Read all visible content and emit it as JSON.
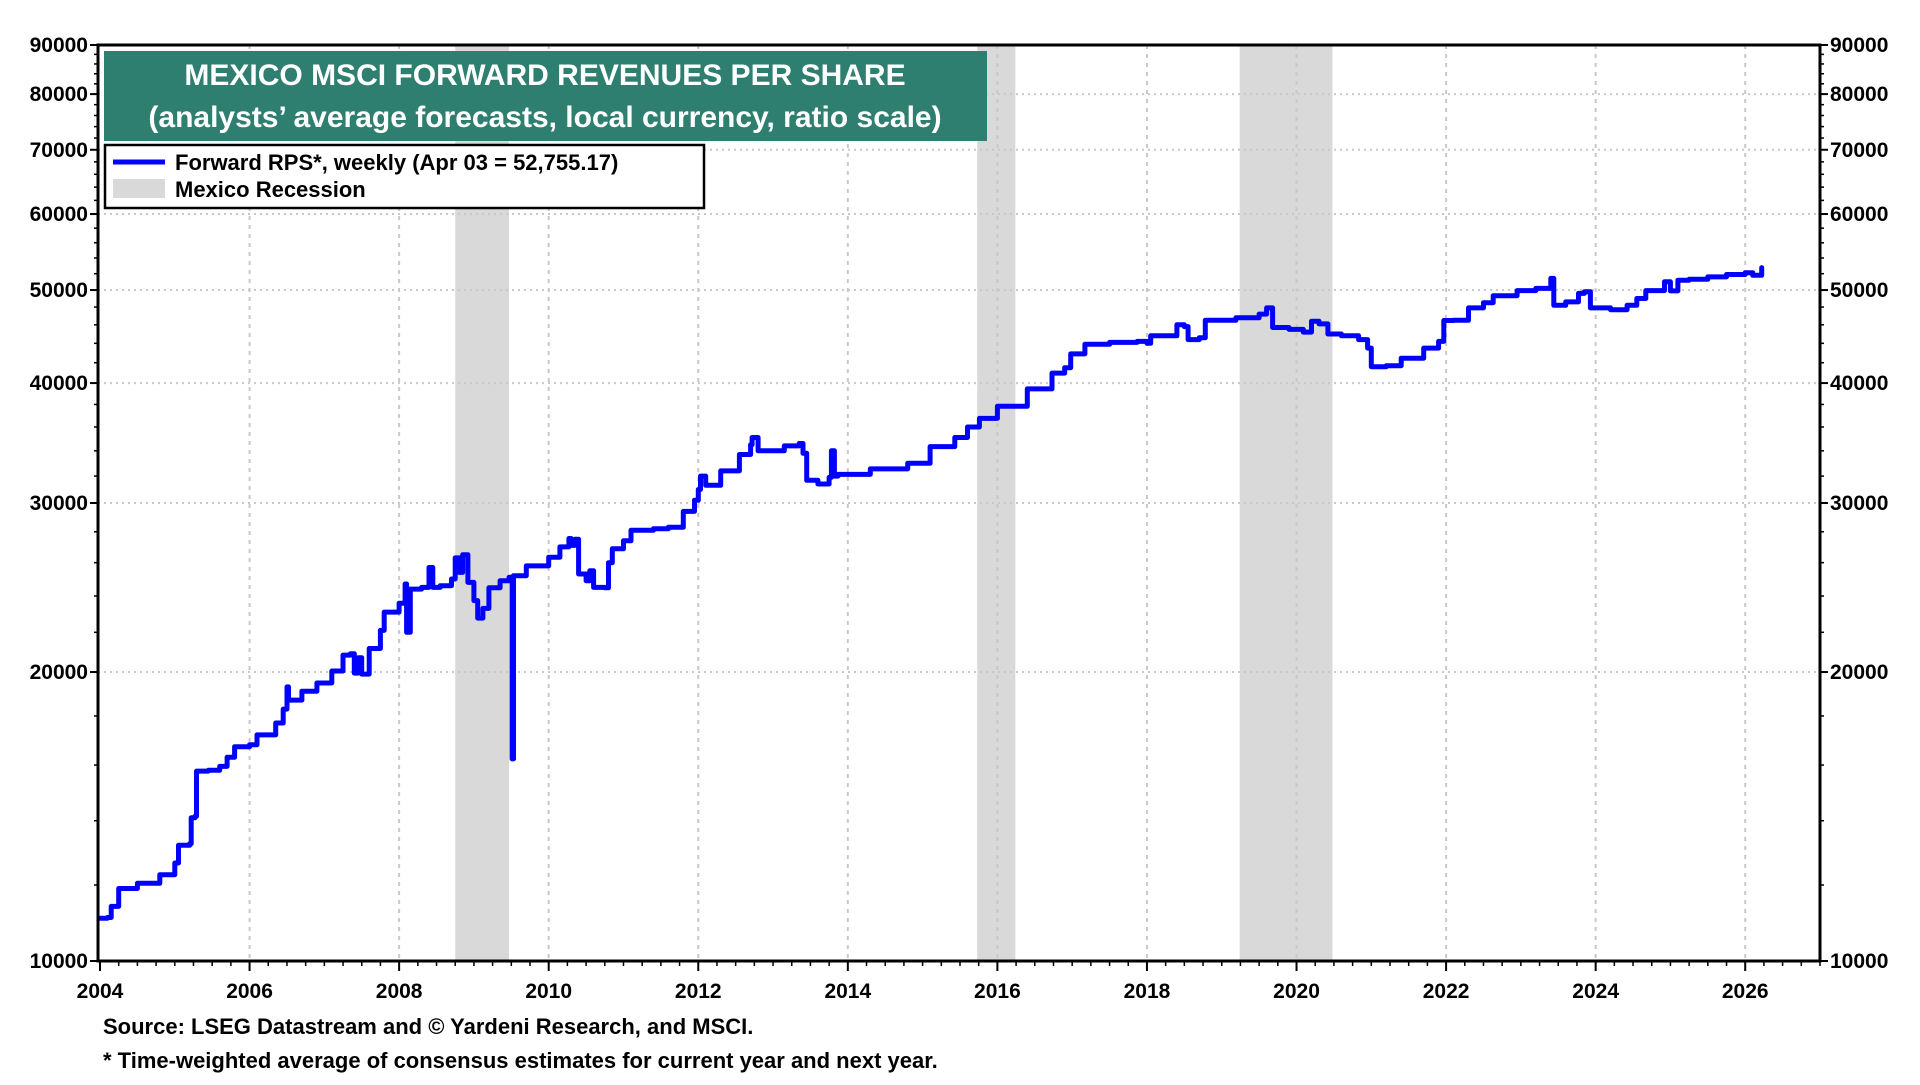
{
  "chart_data": {
    "type": "line",
    "title": "MEXICO MSCI FORWARD REVENUES PER SHARE",
    "subtitle": "(analysts’ average forecasts, local currency, ratio scale)",
    "xlabel": "",
    "ylabel": "",
    "y_scale": "log",
    "ylim": [
      10000,
      90000
    ],
    "xlim": [
      2004,
      2027
    ],
    "grid": true,
    "legend_position": "top-left",
    "x_ticks": [
      "2004",
      "2006",
      "2008",
      "2010",
      "2012",
      "2014",
      "2016",
      "2018",
      "2020",
      "2022",
      "2024",
      "2026"
    ],
    "y_ticks": [
      "10000",
      "20000",
      "30000",
      "40000",
      "50000",
      "60000",
      "70000",
      "80000",
      "90000"
    ],
    "colors": {
      "series": "#0000ff",
      "recession": "#d9d9d9",
      "title_bg": "#2e7f6f"
    },
    "recessions": [
      {
        "name": "Mexico Recession",
        "start": 2008.75,
        "end": 2009.47
      },
      {
        "start": 2015.73,
        "end": 2016.24
      },
      {
        "start": 2019.24,
        "end": 2020.48
      }
    ],
    "series": [
      {
        "name": "Forward RPS*, weekly (Apr 03 = 52,755.17)",
        "points": [
          [
            2004.0,
            11080
          ],
          [
            2004.1,
            11100
          ],
          [
            2004.15,
            11400
          ],
          [
            2004.25,
            11900
          ],
          [
            2004.5,
            12050
          ],
          [
            2004.8,
            12300
          ],
          [
            2005.0,
            12650
          ],
          [
            2005.05,
            13200
          ],
          [
            2005.2,
            13250
          ],
          [
            2005.22,
            14100
          ],
          [
            2005.27,
            14150
          ],
          [
            2005.29,
            15770
          ],
          [
            2005.45,
            15800
          ],
          [
            2005.6,
            15950
          ],
          [
            2005.7,
            16300
          ],
          [
            2005.8,
            16720
          ],
          [
            2006.0,
            16800
          ],
          [
            2006.1,
            17200
          ],
          [
            2006.35,
            17700
          ],
          [
            2006.45,
            18300
          ],
          [
            2006.5,
            19300
          ],
          [
            2006.52,
            18700
          ],
          [
            2006.7,
            19100
          ],
          [
            2006.9,
            19480
          ],
          [
            2007.1,
            20050
          ],
          [
            2007.25,
            20830
          ],
          [
            2007.35,
            20900
          ],
          [
            2007.4,
            19950
          ],
          [
            2007.45,
            20700
          ],
          [
            2007.5,
            19900
          ],
          [
            2007.6,
            21160
          ],
          [
            2007.75,
            22100
          ],
          [
            2007.8,
            23090
          ],
          [
            2008.0,
            23590
          ],
          [
            2008.08,
            24700
          ],
          [
            2008.1,
            22000
          ],
          [
            2008.15,
            24400
          ],
          [
            2008.3,
            24500
          ],
          [
            2008.4,
            25700
          ],
          [
            2008.45,
            24500
          ],
          [
            2008.55,
            24600
          ],
          [
            2008.7,
            25000
          ],
          [
            2008.75,
            26300
          ],
          [
            2008.8,
            25400
          ],
          [
            2008.85,
            26500
          ],
          [
            2008.92,
            24800
          ],
          [
            2009.0,
            23740
          ],
          [
            2009.05,
            22760
          ],
          [
            2009.12,
            23300
          ],
          [
            2009.2,
            24480
          ],
          [
            2009.35,
            24900
          ],
          [
            2009.47,
            25100
          ],
          [
            2009.5,
            25100
          ],
          [
            2009.51,
            16240
          ],
          [
            2009.53,
            25200
          ],
          [
            2009.7,
            25800
          ],
          [
            2010.0,
            26340
          ],
          [
            2010.15,
            27000
          ],
          [
            2010.27,
            27550
          ],
          [
            2010.3,
            27100
          ],
          [
            2010.35,
            27500
          ],
          [
            2010.4,
            25300
          ],
          [
            2010.5,
            24900
          ],
          [
            2010.55,
            25500
          ],
          [
            2010.6,
            24500
          ],
          [
            2010.75,
            24480
          ],
          [
            2010.8,
            26000
          ],
          [
            2010.85,
            26880
          ],
          [
            2011.0,
            27400
          ],
          [
            2011.1,
            28100
          ],
          [
            2011.4,
            28200
          ],
          [
            2011.6,
            28300
          ],
          [
            2011.8,
            29400
          ],
          [
            2011.95,
            30200
          ],
          [
            2012.0,
            30990
          ],
          [
            2012.03,
            32000
          ],
          [
            2012.1,
            31300
          ],
          [
            2012.3,
            32400
          ],
          [
            2012.55,
            33700
          ],
          [
            2012.7,
            34500
          ],
          [
            2012.72,
            35100
          ],
          [
            2012.8,
            34000
          ],
          [
            2013.15,
            34400
          ],
          [
            2013.35,
            34600
          ],
          [
            2013.4,
            33800
          ],
          [
            2013.45,
            31680
          ],
          [
            2013.6,
            31400
          ],
          [
            2013.75,
            31900
          ],
          [
            2013.78,
            34000
          ],
          [
            2013.82,
            32000
          ],
          [
            2013.87,
            32130
          ],
          [
            2014.3,
            32560
          ],
          [
            2014.8,
            33000
          ],
          [
            2015.1,
            34350
          ],
          [
            2015.43,
            35100
          ],
          [
            2015.6,
            36000
          ],
          [
            2015.76,
            36750
          ],
          [
            2016.0,
            37830
          ],
          [
            2016.4,
            39440
          ],
          [
            2016.73,
            40970
          ],
          [
            2016.9,
            41500
          ],
          [
            2016.98,
            42900
          ],
          [
            2017.17,
            43900
          ],
          [
            2017.5,
            44100
          ],
          [
            2017.87,
            44200
          ],
          [
            2018.0,
            44000
          ],
          [
            2018.05,
            44800
          ],
          [
            2018.4,
            46000
          ],
          [
            2018.5,
            45800
          ],
          [
            2018.55,
            44400
          ],
          [
            2018.7,
            44600
          ],
          [
            2018.78,
            46500
          ],
          [
            2019.19,
            46780
          ],
          [
            2019.5,
            47200
          ],
          [
            2019.6,
            47900
          ],
          [
            2019.68,
            45700
          ],
          [
            2019.9,
            45500
          ],
          [
            2020.09,
            45200
          ],
          [
            2020.2,
            46400
          ],
          [
            2020.3,
            46100
          ],
          [
            2020.42,
            45000
          ],
          [
            2020.6,
            44800
          ],
          [
            2020.83,
            44400
          ],
          [
            2020.95,
            43500
          ],
          [
            2021.0,
            41600
          ],
          [
            2021.2,
            41700
          ],
          [
            2021.4,
            42460
          ],
          [
            2021.7,
            43500
          ],
          [
            2021.9,
            44200
          ],
          [
            2021.97,
            46480
          ],
          [
            2022.1,
            46500
          ],
          [
            2022.3,
            47900
          ],
          [
            2022.5,
            48500
          ],
          [
            2022.63,
            49330
          ],
          [
            2022.95,
            49930
          ],
          [
            2023.2,
            50200
          ],
          [
            2023.4,
            51420
          ],
          [
            2023.44,
            48200
          ],
          [
            2023.6,
            48600
          ],
          [
            2023.77,
            49600
          ],
          [
            2023.85,
            49800
          ],
          [
            2023.93,
            47900
          ],
          [
            2024.2,
            47700
          ],
          [
            2024.42,
            48200
          ],
          [
            2024.55,
            49000
          ],
          [
            2024.67,
            49930
          ],
          [
            2024.92,
            51000
          ],
          [
            2025.0,
            49900
          ],
          [
            2025.1,
            51200
          ],
          [
            2025.25,
            51300
          ],
          [
            2025.5,
            51600
          ],
          [
            2025.75,
            51900
          ],
          [
            2026.0,
            52130
          ],
          [
            2026.1,
            51800
          ],
          [
            2026.22,
            52755.17
          ]
        ]
      },
      {
        "name": "Mexico Recession"
      }
    ],
    "footnotes": [
      "Source: LSEG Datastream and © Yardeni Research, and MSCI.",
      "* Time-weighted average of consensus estimates for current year and next year."
    ]
  }
}
